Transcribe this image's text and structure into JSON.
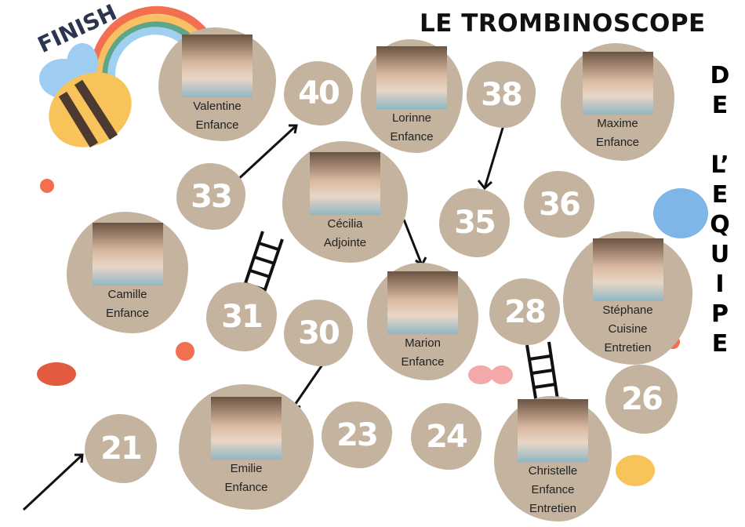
{
  "title": "LE TROMBINOSCOPE",
  "vertical_title": [
    "D",
    "E",
    "",
    "L’",
    "E",
    "Q",
    "U",
    "I",
    "P",
    "E"
  ],
  "finish_label": "FINISH",
  "squares": [
    "40",
    "33",
    "38",
    "35",
    "36",
    "31",
    "30",
    "28",
    "26",
    "21",
    "23",
    "24"
  ],
  "people": [
    {
      "name": "Valentine",
      "roles": [
        "Enfance"
      ]
    },
    {
      "name": "Lorinne",
      "roles": [
        "Enfance"
      ]
    },
    {
      "name": "Maxime",
      "roles": [
        "Enfance"
      ]
    },
    {
      "name": "Cécilia",
      "roles": [
        "Adjointe"
      ]
    },
    {
      "name": "Camille",
      "roles": [
        "Enfance"
      ]
    },
    {
      "name": "Marion",
      "roles": [
        "Enfance"
      ]
    },
    {
      "name": "Stéphane",
      "roles": [
        "Cuisine",
        "Entretien"
      ]
    },
    {
      "name": "Emilie",
      "roles": [
        "Enfance"
      ]
    },
    {
      "name": "Christelle",
      "roles": [
        "Enfance",
        "Entretien"
      ]
    }
  ],
  "colors": {
    "blob": "#c3b39f",
    "text": "#111111"
  }
}
